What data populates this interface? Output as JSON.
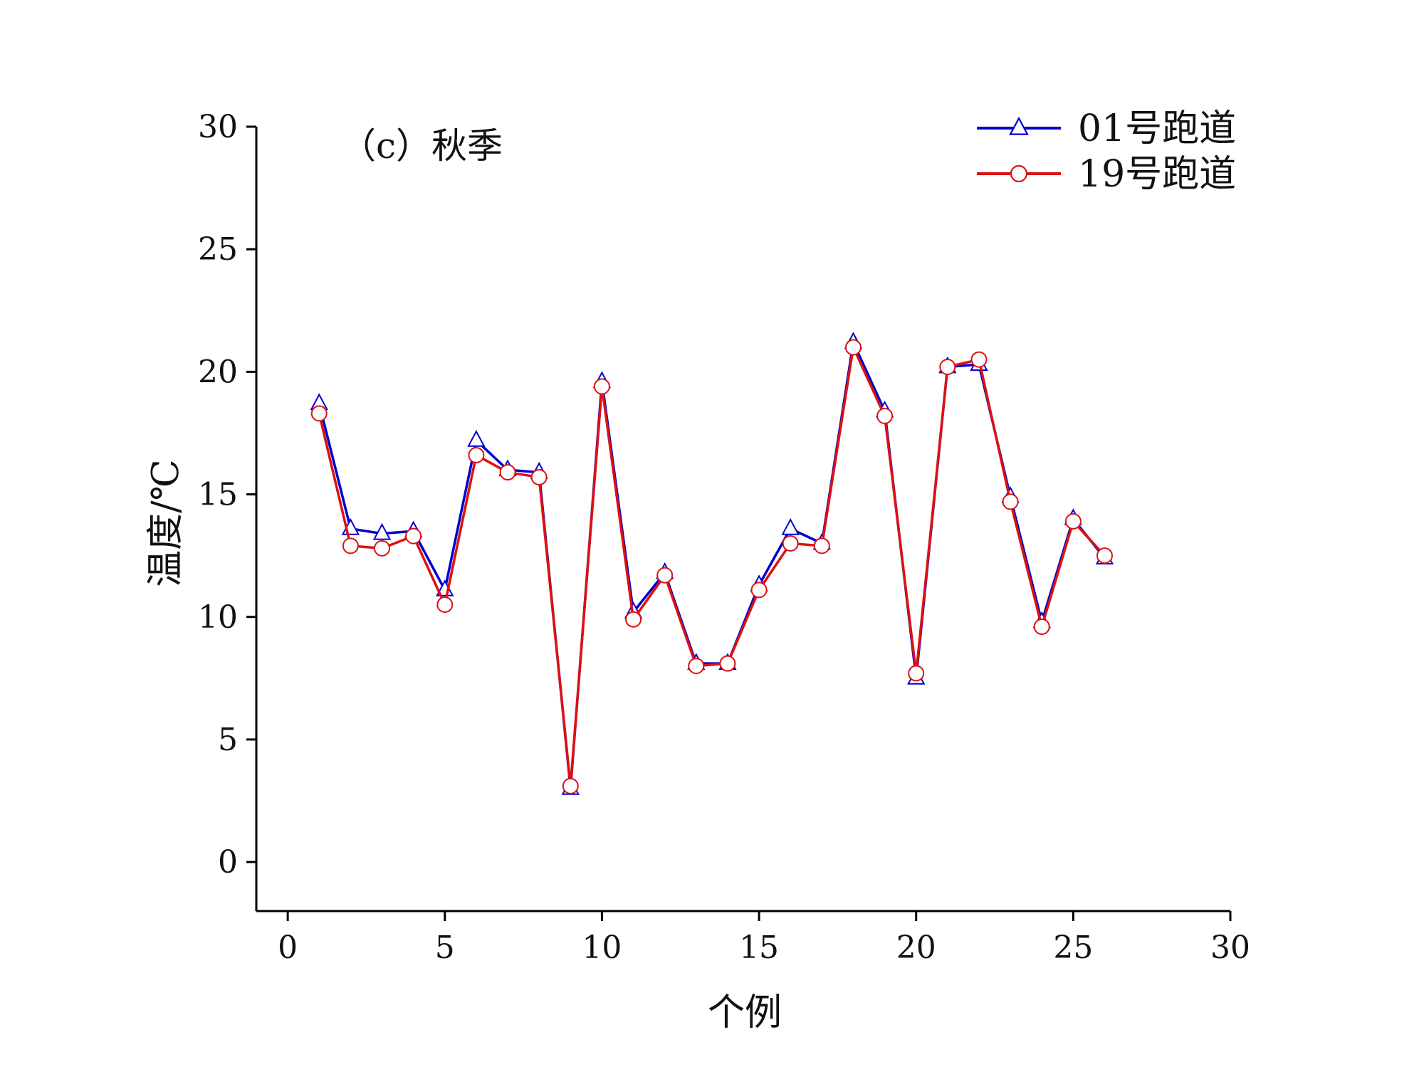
{
  "chart_data": {
    "type": "line",
    "annotation": "（c）秋季",
    "xlabel": "个例",
    "ylabel": "温度/℃",
    "xlim": [
      -1,
      30
    ],
    "ylim": [
      -2,
      30
    ],
    "xticks": [
      0,
      5,
      10,
      15,
      20,
      25,
      30
    ],
    "yticks": [
      0,
      5,
      10,
      15,
      20,
      25,
      30
    ],
    "grid": false,
    "legend_position": "top-right",
    "x": [
      1,
      2,
      3,
      4,
      5,
      6,
      7,
      8,
      9,
      10,
      11,
      12,
      13,
      14,
      15,
      16,
      17,
      18,
      19,
      20,
      21,
      22,
      23,
      24,
      25,
      26
    ],
    "series": [
      {
        "name": "01号跑道",
        "color": "#0000cc",
        "marker": "triangle",
        "values": [
          18.7,
          13.6,
          13.4,
          13.5,
          11.1,
          17.2,
          16.0,
          15.9,
          3.0,
          19.6,
          10.2,
          11.8,
          8.1,
          8.1,
          11.3,
          13.6,
          13.0,
          21.2,
          18.4,
          7.5,
          20.2,
          20.3,
          14.9,
          9.8,
          14.0,
          12.4
        ]
      },
      {
        "name": "19号跑道",
        "color": "#dd1111",
        "marker": "circle",
        "values": [
          18.3,
          12.9,
          12.8,
          13.3,
          10.5,
          16.6,
          15.9,
          15.7,
          3.1,
          19.4,
          9.9,
          11.7,
          8.0,
          8.1,
          11.1,
          13.0,
          12.9,
          21.0,
          18.2,
          7.7,
          20.2,
          20.5,
          14.7,
          9.6,
          13.9,
          12.5
        ]
      }
    ]
  }
}
